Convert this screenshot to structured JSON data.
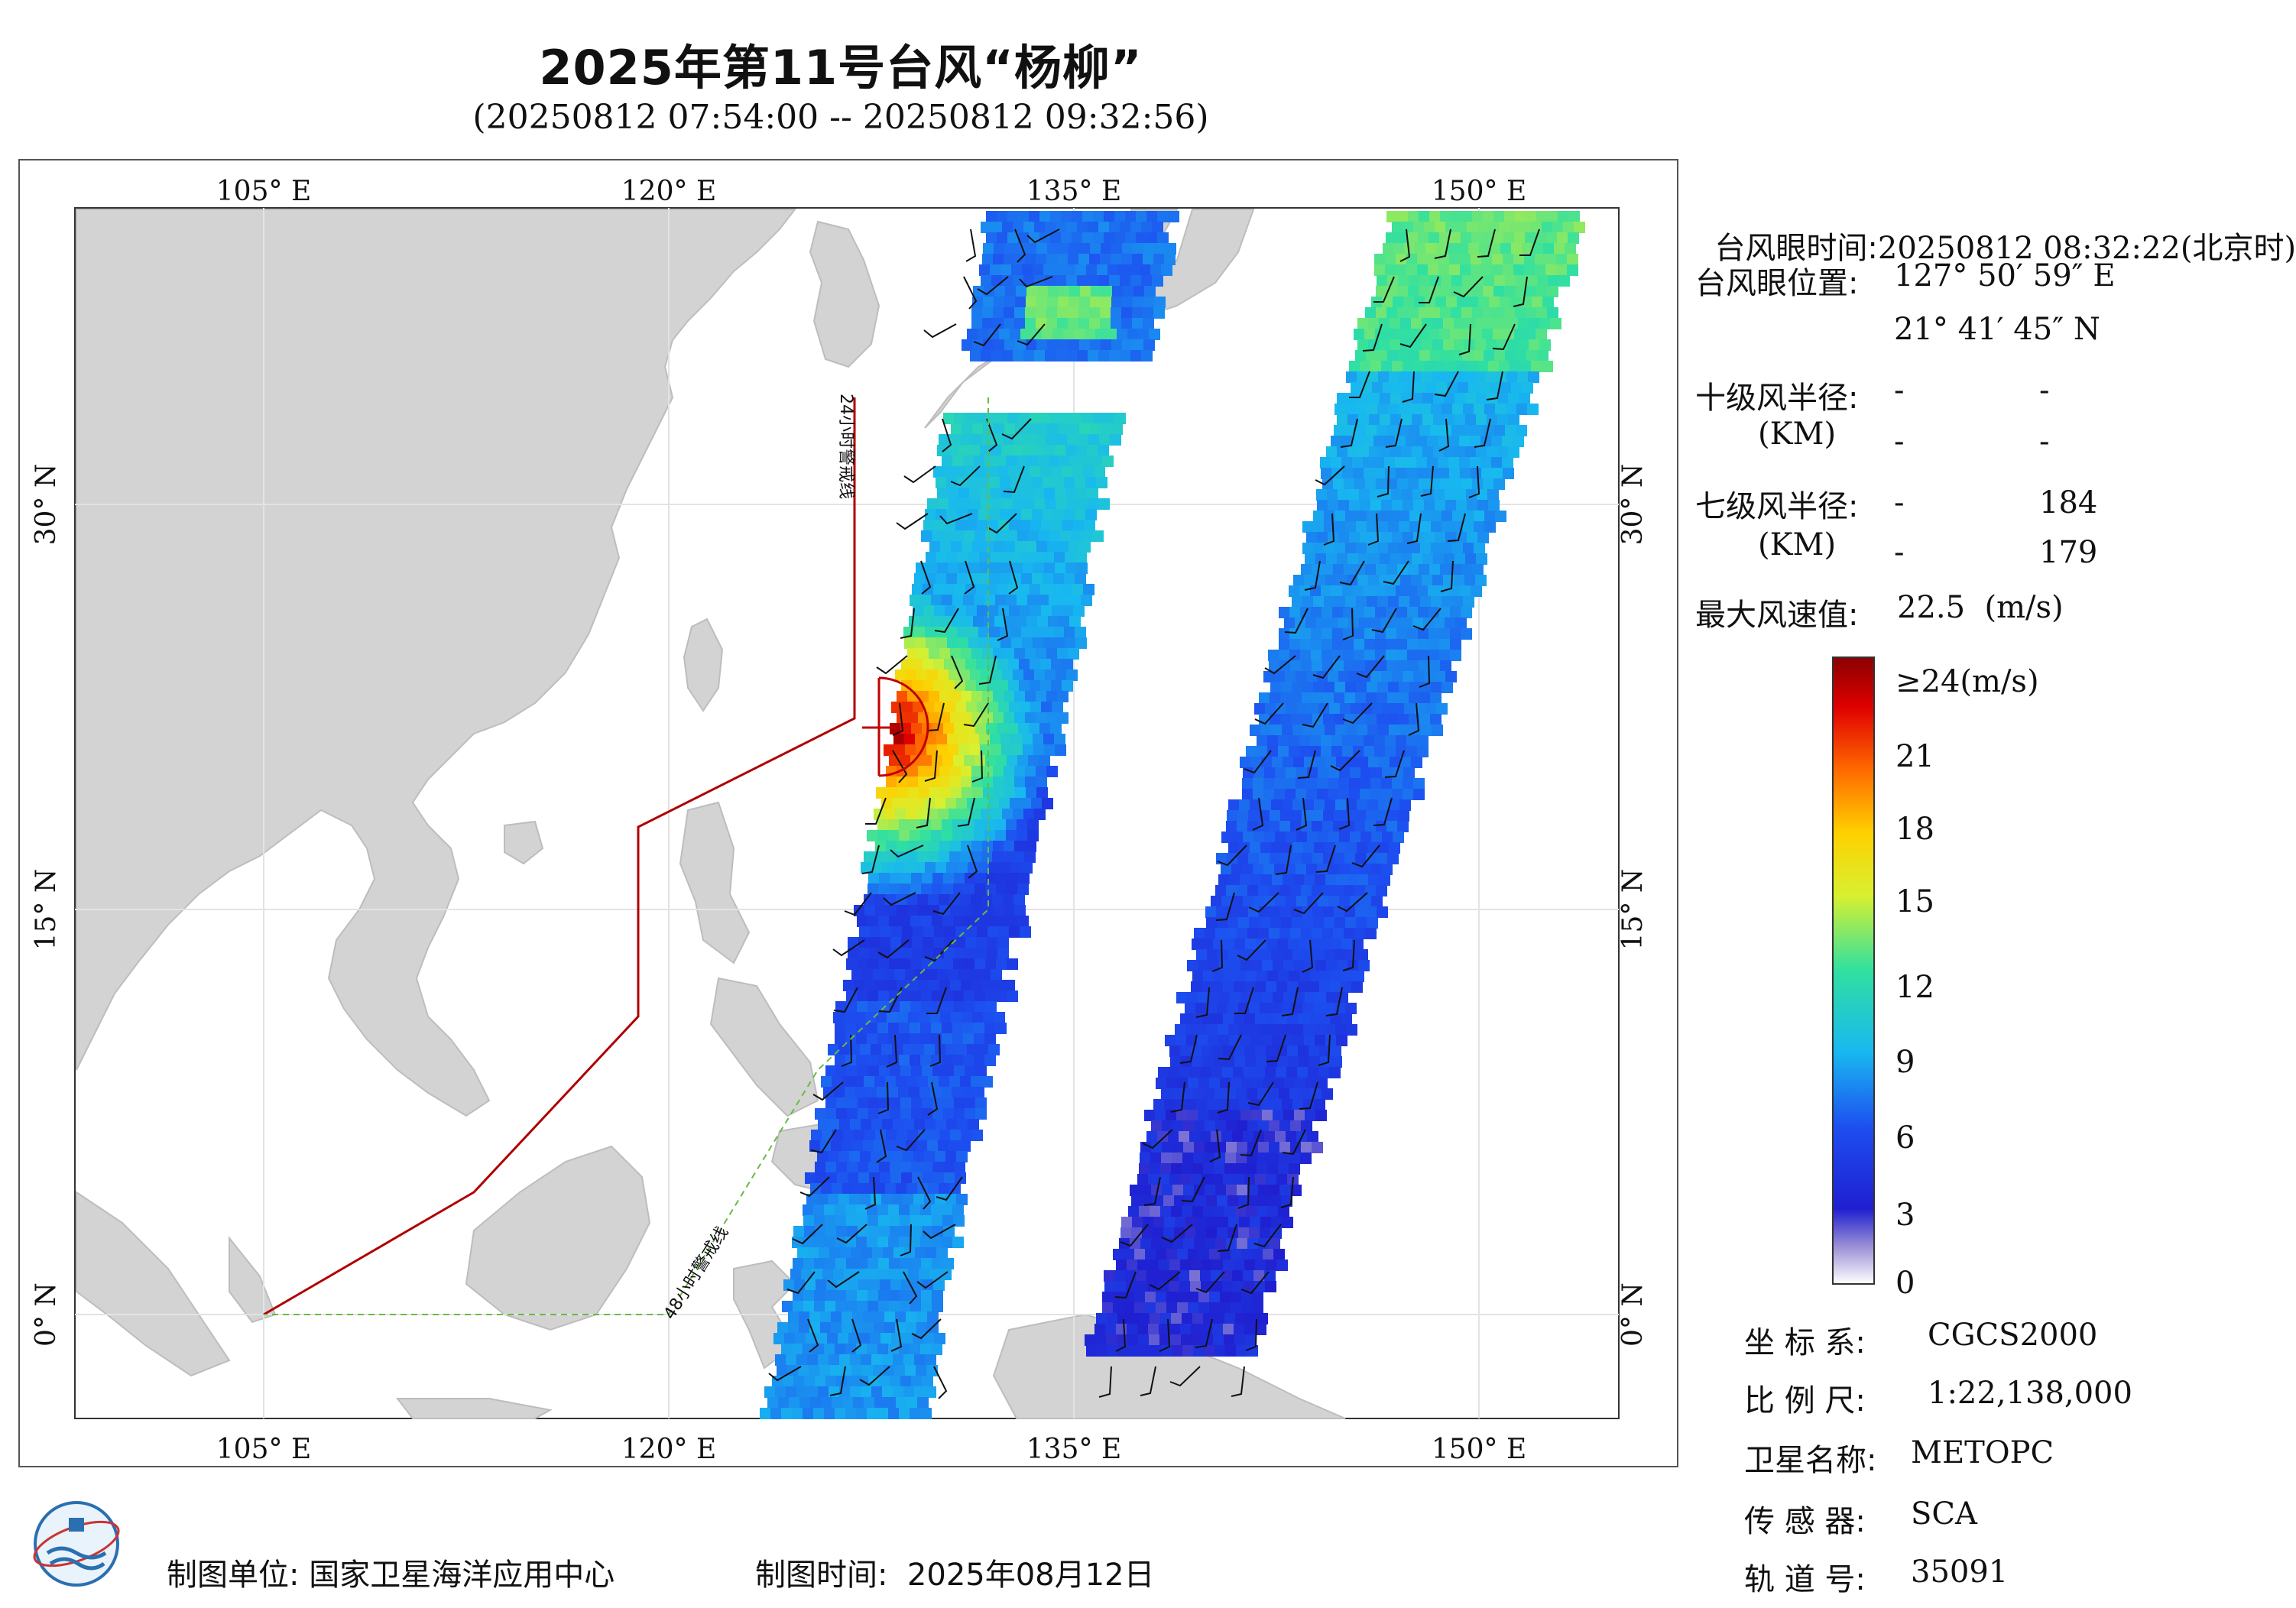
{
  "header": {
    "title": "2025年第11号台风“杨柳”",
    "subtitle": "(20250812 07:54:00 -- 20250812 09:32:56)"
  },
  "map": {
    "lon_labels": [
      "105° E",
      "120° E",
      "135° E",
      "150° E"
    ],
    "lat_labels": [
      "30° N",
      "15° N",
      "0° N"
    ],
    "lon_range": [
      98,
      155
    ],
    "lat_range": [
      -4,
      41
    ],
    "warning_lines": {
      "line_24h": "24小时警戒线",
      "line_48h": "48小时警戒线"
    },
    "typhoon_eye": {
      "lon": 127.85,
      "lat": 21.7
    },
    "colors": {
      "land": "#d3d3d3",
      "ocean": "#ffffff",
      "line_24h": "#b00000",
      "line_48h": "#66bb44"
    }
  },
  "info_panel": {
    "eye_time_label": "台风眼时间:",
    "eye_time_value": "20250812 08:32:22(北京时)",
    "eye_pos_label": "台风眼位置:",
    "eye_lon": "127° 50′ 59″ E",
    "eye_lat": "21° 41′ 45″ N",
    "r10_label": "十级风半径:",
    "r10_unit": "(KM)",
    "r10_values": [
      "-",
      "-",
      "-",
      "-"
    ],
    "r7_label": "七级风半径:",
    "r7_unit": "(KM)",
    "r7_values": [
      "-",
      "184",
      "-",
      "179"
    ],
    "max_wind_label": "最大风速值:",
    "max_wind_value": "22.5  (m/s)"
  },
  "colorbar": {
    "labels": [
      "≥24(m/s)",
      "21",
      "18",
      "15",
      "12",
      "9",
      "6",
      "3",
      "0"
    ],
    "values": [
      24,
      21,
      18,
      15,
      12,
      9,
      6,
      3,
      0
    ]
  },
  "meta": {
    "crs_label": "坐 标 系:",
    "crs_value": "CGCS2000",
    "scale_label": "比 例 尺:",
    "scale_value": "1:22,138,000",
    "satellite_label": "卫星名称:",
    "satellite_value": "METOPC",
    "sensor_label": "传 感 器:",
    "sensor_value": "SCA",
    "orbit_label": "轨 道 号:",
    "orbit_value": "35091"
  },
  "footer": {
    "producer_label": "制图单位:",
    "producer_value": "国家卫星海洋应用中心",
    "date_label": "制图时间:",
    "date_value": "2025年08月12日"
  }
}
